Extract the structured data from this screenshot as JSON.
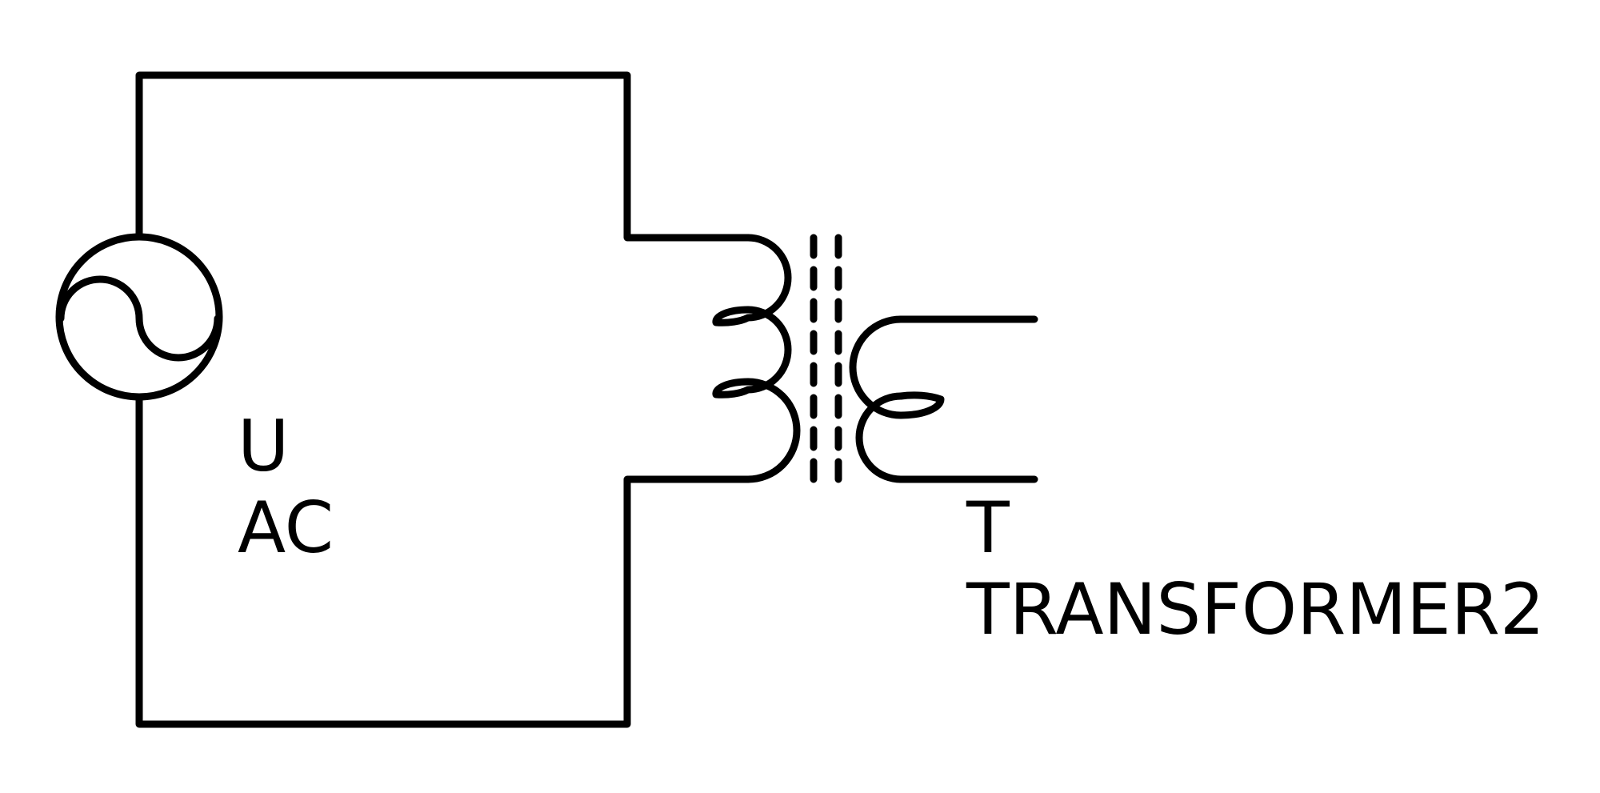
{
  "source": {
    "designator": "U",
    "type": "AC"
  },
  "transformer": {
    "designator": "T",
    "type": "TRANSFORMER2"
  }
}
